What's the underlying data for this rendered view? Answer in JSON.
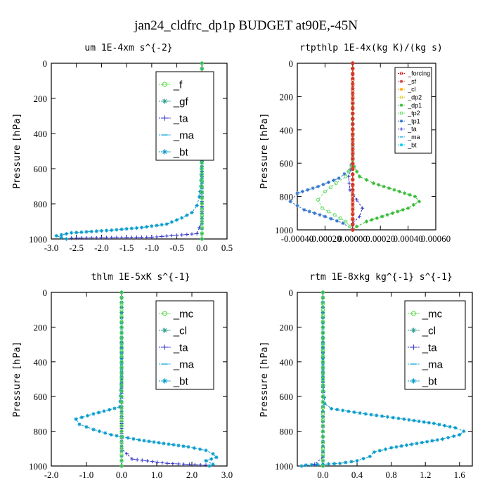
{
  "figure_title": "jan24_cldfrc_dp1p  BUDGET at90E,-45N",
  "chart_data": [
    {
      "type": "line",
      "title": "um  1E-4xm s^{-2}",
      "ylabel": "Pressure [hPa]",
      "xlim": [
        -3.0,
        0.5
      ],
      "ylim": [
        0,
        1000
      ],
      "y_inverted": true,
      "xticks": [
        "-3.0",
        "-2.5",
        "-2.0",
        "-1.5",
        "-1.0",
        "-0.5",
        "0.0",
        "0.5"
      ],
      "xtick_values": [
        -3.0,
        -2.5,
        -2.0,
        -1.5,
        -1.0,
        -0.5,
        0.0,
        0.5
      ],
      "yticks": [
        "0",
        "200",
        "400",
        "600",
        "800",
        "1000"
      ],
      "ytick_values": [
        0,
        200,
        400,
        600,
        800,
        1000
      ],
      "legend_position": "top-right",
      "series": [
        {
          "name": "_f",
          "color": "#55dd44",
          "marker": "circle",
          "points": [
            [
              0,
              0
            ],
            [
              0,
              100
            ],
            [
              0,
              200
            ],
            [
              0,
              300
            ],
            [
              0,
              400
            ],
            [
              0,
              500
            ],
            [
              0,
              600
            ],
            [
              0,
              700
            ],
            [
              0,
              800
            ],
            [
              0,
              900
            ],
            [
              0,
              1000
            ]
          ]
        },
        {
          "name": "_gf",
          "color": "#2a9d8f",
          "marker": "star",
          "points": [
            [
              0,
              0
            ],
            [
              0,
              500
            ],
            [
              0,
              1000
            ]
          ]
        },
        {
          "name": "_ta",
          "color": "#3333cc",
          "marker": "plus",
          "points": [
            [
              0,
              0
            ],
            [
              0,
              500
            ],
            [
              0,
              900
            ],
            [
              -0.1,
              970
            ],
            [
              -1.0,
              990
            ],
            [
              -2.6,
              995
            ]
          ]
        },
        {
          "name": "_ma",
          "color": "#22aadd",
          "marker": "dash",
          "points": [
            [
              0,
              0
            ],
            [
              0,
              1000
            ]
          ]
        },
        {
          "name": "_bt",
          "color": "#0099cc",
          "marker": "star",
          "points": [
            [
              0.0,
              0
            ],
            [
              0.0,
              500
            ],
            [
              -0.01,
              600
            ],
            [
              -0.02,
              700
            ],
            [
              -0.05,
              760
            ],
            [
              -0.1,
              810
            ],
            [
              -0.2,
              850
            ],
            [
              -0.4,
              880
            ],
            [
              -0.7,
              915
            ],
            [
              -1.2,
              935
            ],
            [
              -1.8,
              950
            ],
            [
              -2.6,
              965
            ],
            [
              -2.9,
              982
            ],
            [
              -2.8,
              992
            ],
            [
              -2.7,
              1000
            ]
          ]
        }
      ]
    },
    {
      "type": "line",
      "title": "rtpthlp  1E-4x(kg K)/(kg s)",
      "ylabel": "Pressure [hPa]",
      "xlim": [
        -0.0004,
        0.0006
      ],
      "ylim": [
        0,
        1000
      ],
      "y_inverted": true,
      "xticks": [
        "-0.00040",
        "-0.00020",
        "0.00000",
        "0.00020",
        "0.00040",
        "0.00060"
      ],
      "xtick_values": [
        -0.0004,
        -0.0002,
        0.0,
        0.0002,
        0.0004,
        0.0006
      ],
      "yticks": [
        "0",
        "200",
        "400",
        "600",
        "800",
        "1000"
      ],
      "ytick_values": [
        0,
        200,
        400,
        600,
        800,
        1000
      ],
      "legend_position": "top-right",
      "series": [
        {
          "name": "_forcing",
          "color": "#dd2222",
          "marker": "circle",
          "points": [
            [
              0,
              0
            ],
            [
              0,
              100
            ],
            [
              0,
              200
            ],
            [
              0,
              300
            ],
            [
              0,
              400
            ],
            [
              0,
              500
            ],
            [
              0,
              600
            ],
            [
              0,
              700
            ],
            [
              0,
              800
            ],
            [
              0,
              900
            ],
            [
              0,
              1000
            ]
          ]
        },
        {
          "name": "_sf",
          "color": "#cc4444",
          "marker": "star",
          "points": [
            [
              0,
              0
            ],
            [
              0,
              1000
            ]
          ]
        },
        {
          "name": "_cl",
          "color": "#ffaa00",
          "marker": "star",
          "points": [
            [
              0,
              0
            ],
            [
              0,
              1000
            ]
          ]
        },
        {
          "name": "_dp2",
          "color": "#ddcc33",
          "marker": "circle",
          "points": [
            [
              0,
              0
            ],
            [
              0,
              1000
            ]
          ]
        },
        {
          "name": "_dp1",
          "color": "#33bb33",
          "marker": "star",
          "points": [
            [
              0,
              0
            ],
            [
              0,
              580
            ],
            [
              1e-05,
              620
            ],
            [
              5e-05,
              680
            ],
            [
              0.00015,
              720
            ],
            [
              0.0003,
              760
            ],
            [
              0.00045,
              800
            ],
            [
              0.00048,
              830
            ],
            [
              0.0004,
              870
            ],
            [
              0.00025,
              910
            ],
            [
              0.0001,
              950
            ],
            [
              3e-05,
              980
            ],
            [
              0,
              1000
            ]
          ]
        },
        {
          "name": "_tp2",
          "color": "#66dd66",
          "marker": "circle",
          "points": [
            [
              0,
              0
            ],
            [
              0,
              580
            ],
            [
              -1e-05,
              620
            ],
            [
              -5e-05,
              680
            ],
            [
              -0.00012,
              720
            ],
            [
              -0.0002,
              770
            ],
            [
              -0.00025,
              820
            ],
            [
              -0.00022,
              870
            ],
            [
              -0.00013,
              910
            ],
            [
              -5e-05,
              950
            ],
            [
              -2e-05,
              980
            ],
            [
              0,
              1000
            ]
          ]
        },
        {
          "name": "_tp1",
          "color": "#3377cc",
          "marker": "star",
          "points": [
            [
              0,
              0
            ],
            [
              0,
              580
            ],
            [
              -2e-05,
              640
            ],
            [
              -0.0001,
              690
            ],
            [
              -0.00025,
              740
            ],
            [
              -0.0004,
              780
            ],
            [
              -0.00045,
              830
            ],
            [
              -0.00035,
              880
            ],
            [
              -0.0002,
              920
            ],
            [
              -7e-05,
              960
            ],
            [
              0,
              1000
            ]
          ]
        },
        {
          "name": "_ta",
          "color": "#3333cc",
          "marker": "plus",
          "points": [
            [
              0,
              0
            ],
            [
              0,
              600
            ],
            [
              -3e-05,
              680
            ],
            [
              -2e-05,
              760
            ],
            [
              3e-05,
              820
            ],
            [
              7e-05,
              870
            ],
            [
              5e-05,
              920
            ],
            [
              0,
              960
            ],
            [
              0,
              1000
            ]
          ]
        },
        {
          "name": "_ma",
          "color": "#22aadd",
          "marker": "dash",
          "points": [
            [
              0,
              0
            ],
            [
              0,
              1000
            ]
          ]
        },
        {
          "name": "_bt",
          "color": "#00ccee",
          "marker": "star",
          "points": [
            [
              0,
              0
            ],
            [
              0,
              1000
            ]
          ]
        }
      ]
    },
    {
      "type": "line",
      "title": "thlm  1E-5xK s^{-1}",
      "ylabel": "Pressure [hPa]",
      "xlim": [
        -2.0,
        3.0
      ],
      "ylim": [
        0,
        1000
      ],
      "y_inverted": true,
      "xticks": [
        "-2.0",
        "-1.0",
        "0.0",
        "1.0",
        "2.0",
        "3.0"
      ],
      "xtick_values": [
        -2.0,
        -1.0,
        0.0,
        1.0,
        2.0,
        3.0
      ],
      "yticks": [
        "0",
        "200",
        "400",
        "600",
        "800",
        "1000"
      ],
      "ytick_values": [
        0,
        200,
        400,
        600,
        800,
        1000
      ],
      "legend_position": "top-right",
      "series": [
        {
          "name": "_mc",
          "color": "#55dd44",
          "marker": "circle",
          "points": [
            [
              0,
              0
            ],
            [
              0,
              100
            ],
            [
              0,
              200
            ],
            [
              0,
              300
            ],
            [
              0,
              400
            ],
            [
              0,
              500
            ],
            [
              0,
              600
            ],
            [
              0,
              700
            ],
            [
              0,
              800
            ],
            [
              0,
              900
            ],
            [
              0,
              1000
            ]
          ]
        },
        {
          "name": "_cl",
          "color": "#2a9d8f",
          "marker": "star",
          "points": [
            [
              0,
              0
            ],
            [
              0,
              1000
            ]
          ]
        },
        {
          "name": "_ta",
          "color": "#3333cc",
          "marker": "plus",
          "points": [
            [
              0,
              0
            ],
            [
              0,
              900
            ],
            [
              0.3,
              960
            ],
            [
              1.3,
              985
            ],
            [
              2.4,
              995
            ]
          ]
        },
        {
          "name": "_ma",
          "color": "#22aadd",
          "marker": "dash",
          "points": [
            [
              0,
              0
            ],
            [
              0,
              1000
            ]
          ]
        },
        {
          "name": "_bt",
          "color": "#0099cc",
          "marker": "star",
          "points": [
            [
              0.0,
              0
            ],
            [
              0.0,
              500
            ],
            [
              -0.05,
              660
            ],
            [
              -0.8,
              700
            ],
            [
              -1.3,
              730
            ],
            [
              -1.2,
              760
            ],
            [
              -0.8,
              790
            ],
            [
              -0.3,
              820
            ],
            [
              0.5,
              850
            ],
            [
              1.2,
              870
            ],
            [
              1.9,
              890
            ],
            [
              2.4,
              910
            ],
            [
              2.6,
              930
            ],
            [
              2.7,
              950
            ],
            [
              2.4,
              970
            ],
            [
              2.6,
              990
            ],
            [
              2.5,
              1000
            ]
          ]
        }
      ]
    },
    {
      "type": "line",
      "title": "rtm  1E-8xkg kg^{-1} s^{-1}",
      "ylabel": "Pressure [hPa]",
      "xlim": [
        -0.3,
        1.75
      ],
      "ylim": [
        0,
        1000
      ],
      "y_inverted": true,
      "xticks": [
        "0.0",
        "0.4",
        "0.8",
        "1.2",
        "1.6"
      ],
      "xtick_values": [
        0.0,
        0.4,
        0.8,
        1.2,
        1.6
      ],
      "yticks": [
        "0",
        "200",
        "400",
        "600",
        "800",
        "1000"
      ],
      "ytick_values": [
        0,
        200,
        400,
        600,
        800,
        1000
      ],
      "legend_position": "top-right",
      "series": [
        {
          "name": "_mc",
          "color": "#55dd44",
          "marker": "circle",
          "points": [
            [
              0,
              0
            ],
            [
              0,
              100
            ],
            [
              0,
              200
            ],
            [
              0,
              300
            ],
            [
              0,
              400
            ],
            [
              0,
              500
            ],
            [
              0,
              600
            ],
            [
              0,
              700
            ],
            [
              0,
              800
            ],
            [
              0,
              900
            ],
            [
              0,
              1000
            ]
          ]
        },
        {
          "name": "_cl",
          "color": "#2a9d8f",
          "marker": "star",
          "points": [
            [
              0,
              0
            ],
            [
              0,
              1000
            ]
          ]
        },
        {
          "name": "_ta",
          "color": "#3333cc",
          "marker": "plus",
          "points": [
            [
              0,
              0
            ],
            [
              0,
              950
            ],
            [
              -0.1,
              990
            ]
          ]
        },
        {
          "name": "_ma",
          "color": "#22aadd",
          "marker": "dash",
          "points": [
            [
              0,
              0
            ],
            [
              0,
              1000
            ]
          ]
        },
        {
          "name": "_bt",
          "color": "#0099cc",
          "marker": "star",
          "points": [
            [
              0.0,
              0
            ],
            [
              0.0,
              500
            ],
            [
              0.02,
              640
            ],
            [
              0.1,
              670
            ],
            [
              0.5,
              700
            ],
            [
              0.95,
              730
            ],
            [
              1.3,
              755
            ],
            [
              1.55,
              780
            ],
            [
              1.65,
              800
            ],
            [
              1.6,
              820
            ],
            [
              1.4,
              845
            ],
            [
              1.1,
              870
            ],
            [
              0.8,
              895
            ],
            [
              0.6,
              920
            ],
            [
              0.55,
              945
            ],
            [
              0.4,
              970
            ],
            [
              0.2,
              985
            ],
            [
              -0.2,
              995
            ],
            [
              -0.25,
              1000
            ]
          ]
        }
      ]
    }
  ]
}
